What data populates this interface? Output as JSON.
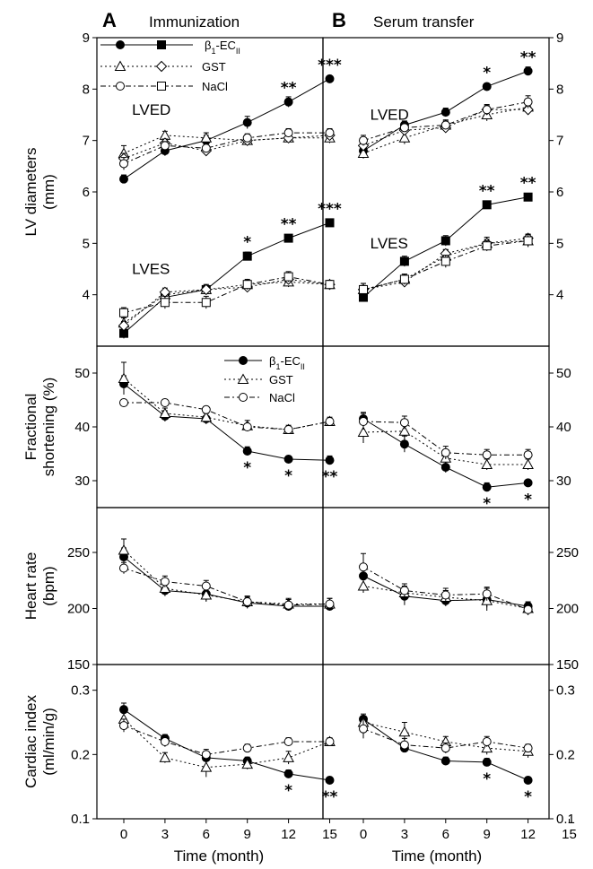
{
  "chart_data": [
    {
      "type": "line",
      "column": "A",
      "panel_letter": "A",
      "title": "Immunization",
      "ylabel_lines": [
        "LV diameters",
        "(mm)"
      ],
      "ylim": [
        3,
        9
      ],
      "yticks": [
        4,
        5,
        6,
        7,
        8,
        9
      ],
      "x": [
        0,
        3,
        6,
        9,
        12,
        15
      ],
      "legend": [
        {
          "label": "β1-ECII",
          "markers": [
            "filled-circle",
            "filled-square"
          ],
          "dash": "solid"
        },
        {
          "label": "GST",
          "markers": [
            "open-triangle",
            "open-diamond"
          ],
          "dash": "dotted"
        },
        {
          "label": "NaCl",
          "markers": [
            "open-circle",
            "open-square"
          ],
          "dash": "dashdot"
        }
      ],
      "annotations": [
        {
          "text": "LVED",
          "x": 0.6,
          "y": 7.5
        },
        {
          "text": "LVES",
          "x": 0.6,
          "y": 4.4
        }
      ],
      "series": [
        {
          "name": "LVED β1-ECII",
          "marker": "filled-circle",
          "dash": "solid",
          "values": [
            6.25,
            6.8,
            7.0,
            7.35,
            7.75,
            8.2
          ],
          "errors": [
            0.08,
            0.1,
            0.1,
            0.12,
            0.1,
            0.05
          ],
          "stars": [
            "",
            "",
            "",
            "",
            "**",
            "***"
          ]
        },
        {
          "name": "LVED GST",
          "marker": "open-triangle",
          "dash": "dotted",
          "values": [
            6.75,
            7.1,
            7.05,
            7.0,
            7.05,
            7.05
          ],
          "errors": [
            0.15,
            0.08,
            0.1,
            0.1,
            0.1,
            0.1
          ]
        },
        {
          "name": "LVED GST",
          "marker": "open-diamond",
          "dash": "dotted",
          "values": [
            6.65,
            6.95,
            6.8,
            7.0,
            7.05,
            7.1
          ],
          "errors": [
            0.1,
            0.08,
            0.08,
            0.08,
            0.08,
            0.08
          ]
        },
        {
          "name": "LVED NaCl",
          "marker": "open-circle",
          "dash": "dashdot",
          "values": [
            6.55,
            6.9,
            6.85,
            7.05,
            7.15,
            7.15
          ],
          "errors": [
            0.12,
            0.08,
            0.08,
            0.08,
            0.08,
            0.08
          ]
        },
        {
          "name": "LVES β1-ECII",
          "marker": "filled-square",
          "dash": "solid",
          "values": [
            3.25,
            3.95,
            4.1,
            4.75,
            5.1,
            5.4
          ],
          "errors": [
            0.1,
            0.08,
            0.1,
            0.08,
            0.06,
            0.05
          ],
          "stars": [
            "",
            "",
            "",
            "*",
            "**",
            "***"
          ]
        },
        {
          "name": "LVES GST",
          "marker": "open-triangle",
          "dash": "dotted",
          "values": [
            3.45,
            4.0,
            4.1,
            4.2,
            4.25,
            4.2
          ],
          "errors": [
            0.1,
            0.1,
            0.08,
            0.08,
            0.1,
            0.08
          ]
        },
        {
          "name": "LVES GST",
          "marker": "open-diamond",
          "dash": "dotted",
          "values": [
            3.4,
            4.05,
            4.1,
            4.15,
            4.3,
            4.2
          ],
          "errors": [
            0.08,
            0.08,
            0.08,
            0.08,
            0.08,
            0.08
          ]
        },
        {
          "name": "LVES NaCl",
          "marker": "open-square",
          "dash": "dashdot",
          "values": [
            3.65,
            3.85,
            3.85,
            4.2,
            4.35,
            4.2
          ],
          "errors": [
            0.1,
            0.12,
            0.12,
            0.1,
            0.1,
            0.08
          ]
        }
      ]
    },
    {
      "type": "line",
      "column": "B",
      "panel_letter": "B",
      "title": "Serum transfer",
      "ylim": [
        3,
        9
      ],
      "yticks": [
        4,
        5,
        6,
        7,
        8,
        9
      ],
      "x": [
        0,
        3,
        6,
        9,
        12
      ],
      "annotations": [
        {
          "text": "LVED",
          "x": 0.5,
          "y": 7.4
        },
        {
          "text": "LVES",
          "x": 0.5,
          "y": 4.9
        }
      ],
      "series": [
        {
          "name": "LVED β1-ECII",
          "marker": "filled-circle",
          "dash": "solid",
          "values": [
            6.8,
            7.3,
            7.55,
            8.05,
            8.35
          ],
          "errors": [
            0.08,
            0.08,
            0.08,
            0.06,
            0.08
          ],
          "stars": [
            "",
            "",
            "",
            "*",
            "**"
          ]
        },
        {
          "name": "LVED GST",
          "marker": "open-triangle",
          "dash": "dotted",
          "values": [
            6.75,
            7.05,
            7.3,
            7.5,
            7.65
          ],
          "errors": [
            0.1,
            0.12,
            0.1,
            0.12,
            0.15
          ]
        },
        {
          "name": "LVED GST",
          "marker": "open-diamond",
          "dash": "dotted",
          "values": [
            6.9,
            7.2,
            7.25,
            7.6,
            7.6
          ],
          "errors": [
            0.08,
            0.08,
            0.08,
            0.1,
            0.1
          ]
        },
        {
          "name": "LVED NaCl",
          "marker": "open-circle",
          "dash": "dashdot",
          "values": [
            7.0,
            7.25,
            7.3,
            7.6,
            7.75
          ],
          "errors": [
            0.1,
            0.08,
            0.08,
            0.08,
            0.12
          ]
        },
        {
          "name": "LVES β1-ECII",
          "marker": "filled-square",
          "dash": "solid",
          "values": [
            3.95,
            4.65,
            5.05,
            5.75,
            5.9
          ],
          "errors": [
            0.08,
            0.1,
            0.1,
            0.06,
            0.06
          ],
          "stars": [
            "",
            "",
            "",
            "**",
            "**"
          ]
        },
        {
          "name": "LVES GST",
          "marker": "open-triangle",
          "dash": "dotted",
          "values": [
            4.1,
            4.3,
            4.75,
            5.0,
            5.05
          ],
          "errors": [
            0.12,
            0.1,
            0.12,
            0.12,
            0.12
          ]
        },
        {
          "name": "LVES GST",
          "marker": "open-diamond",
          "dash": "dotted",
          "values": [
            4.1,
            4.25,
            4.8,
            5.0,
            5.1
          ],
          "errors": [
            0.08,
            0.08,
            0.08,
            0.08,
            0.08
          ]
        },
        {
          "name": "LVES NaCl",
          "marker": "open-square",
          "dash": "dashdot",
          "values": [
            4.1,
            4.3,
            4.65,
            4.95,
            5.05
          ],
          "errors": [
            0.12,
            0.1,
            0.12,
            0.1,
            0.12
          ]
        }
      ]
    },
    {
      "type": "line",
      "column": "A",
      "ylabel_lines": [
        "Fractional",
        "shortening (%)"
      ],
      "ylim": [
        25,
        55
      ],
      "yticks": [
        30,
        40,
        50
      ],
      "x": [
        0,
        3,
        6,
        9,
        12,
        15
      ],
      "legend": [
        {
          "label": "β1-ECII",
          "markers": [
            "filled-circle"
          ],
          "dash": "solid"
        },
        {
          "label": "GST",
          "markers": [
            "open-triangle"
          ],
          "dash": "dotted"
        },
        {
          "label": "NaCl",
          "markers": [
            "open-circle"
          ],
          "dash": "dashdot"
        }
      ],
      "series": [
        {
          "name": "β1-ECII",
          "marker": "filled-circle",
          "dash": "solid",
          "values": [
            48.0,
            42.0,
            41.5,
            35.5,
            34.0,
            33.8
          ],
          "errors": [
            1.5,
            1.0,
            1.0,
            0.8,
            0.6,
            0.8
          ],
          "stars": [
            "",
            "",
            "",
            "*",
            "*",
            "**"
          ]
        },
        {
          "name": "GST",
          "marker": "open-triangle",
          "dash": "dotted",
          "values": [
            49.0,
            42.5,
            41.8,
            40.2,
            39.5,
            41.0
          ],
          "errors": [
            3.0,
            1.0,
            1.0,
            1.0,
            0.8,
            0.8
          ]
        },
        {
          "name": "NaCl",
          "marker": "open-circle",
          "dash": "dashdot",
          "values": [
            44.5,
            44.5,
            43.2,
            40.0,
            39.5,
            41.0
          ],
          "errors": [
            0.6,
            0.6,
            0.6,
            0.6,
            0.6,
            0.6
          ]
        }
      ]
    },
    {
      "type": "line",
      "column": "B",
      "ylim": [
        25,
        55
      ],
      "yticks": [
        30,
        40,
        50
      ],
      "x": [
        0,
        3,
        6,
        9,
        12
      ],
      "series": [
        {
          "name": "β1-ECII",
          "marker": "filled-circle",
          "dash": "solid",
          "values": [
            41.5,
            36.8,
            32.5,
            28.8,
            29.6
          ],
          "errors": [
            1.2,
            1.5,
            1.0,
            0.8,
            0.5
          ],
          "stars": [
            "",
            "",
            "",
            "*",
            "*"
          ]
        },
        {
          "name": "GST",
          "marker": "open-triangle",
          "dash": "dotted",
          "values": [
            39.0,
            39.2,
            34.2,
            33.0,
            33.0
          ],
          "errors": [
            2.0,
            1.5,
            1.5,
            1.0,
            1.0
          ]
        },
        {
          "name": "NaCl",
          "marker": "open-circle",
          "dash": "dashdot",
          "values": [
            41.0,
            40.8,
            35.2,
            34.8,
            34.8
          ],
          "errors": [
            1.5,
            1.2,
            1.2,
            1.0,
            1.0
          ]
        }
      ]
    },
    {
      "type": "line",
      "column": "A",
      "ylabel_lines": [
        "Heart rate",
        "(bpm)"
      ],
      "ylim": [
        150,
        290
      ],
      "yticks": [
        150,
        200,
        250
      ],
      "x": [
        0,
        3,
        6,
        9,
        12,
        15
      ],
      "series": [
        {
          "name": "β1-ECII",
          "marker": "filled-circle",
          "dash": "solid",
          "values": [
            246,
            216,
            213,
            205,
            202,
            202
          ],
          "errors": [
            8,
            5,
            6,
            5,
            4,
            4
          ]
        },
        {
          "name": "GST",
          "marker": "open-triangle",
          "dash": "dotted",
          "values": [
            252,
            218,
            212,
            206,
            204,
            204
          ],
          "errors": [
            10,
            6,
            6,
            5,
            5,
            5
          ]
        },
        {
          "name": "NaCl",
          "marker": "open-circle",
          "dash": "dashdot",
          "values": [
            236,
            224,
            220,
            206,
            203,
            204
          ],
          "errors": [
            5,
            5,
            5,
            5,
            5,
            5
          ]
        }
      ]
    },
    {
      "type": "line",
      "column": "B",
      "ylim": [
        150,
        290
      ],
      "yticks": [
        150,
        200,
        250
      ],
      "x": [
        0,
        3,
        6,
        9,
        12
      ],
      "series": [
        {
          "name": "β1-ECII",
          "marker": "filled-circle",
          "dash": "solid",
          "values": [
            229,
            211,
            207,
            208,
            202
          ],
          "errors": [
            6,
            8,
            5,
            10,
            4
          ]
        },
        {
          "name": "GST",
          "marker": "open-triangle",
          "dash": "dotted",
          "values": [
            220,
            214,
            210,
            207,
            200
          ],
          "errors": [
            6,
            6,
            6,
            6,
            5
          ]
        },
        {
          "name": "NaCl",
          "marker": "open-circle",
          "dash": "dashdot",
          "values": [
            237,
            216,
            212,
            213,
            199
          ],
          "errors": [
            12,
            6,
            6,
            6,
            5
          ]
        }
      ]
    },
    {
      "type": "line",
      "column": "A",
      "ylabel_lines": [
        "Cardiac index",
        "(ml/min/g)"
      ],
      "ylim": [
        0.1,
        0.34
      ],
      "yticks": [
        0.1,
        0.2,
        0.3
      ],
      "xlabel": "Time (month)",
      "x": [
        0,
        3,
        6,
        9,
        12,
        15
      ],
      "xticks": [
        0,
        3,
        6,
        9,
        12,
        15
      ],
      "series": [
        {
          "name": "β1-ECII",
          "marker": "filled-circle",
          "dash": "solid",
          "values": [
            0.27,
            0.225,
            0.195,
            0.19,
            0.17,
            0.16
          ],
          "errors": [
            0.01,
            0.006,
            0.008,
            0.006,
            0.006,
            0.005
          ],
          "stars": [
            "",
            "",
            "",
            "",
            "*",
            "**"
          ]
        },
        {
          "name": "GST",
          "marker": "open-triangle",
          "dash": "dotted",
          "values": [
            0.255,
            0.195,
            0.18,
            0.185,
            0.195,
            0.22
          ],
          "errors": [
            0.01,
            0.008,
            0.015,
            0.008,
            0.01,
            0.005
          ]
        },
        {
          "name": "NaCl",
          "marker": "open-circle",
          "dash": "dashdot",
          "values": [
            0.245,
            0.22,
            0.2,
            0.21,
            0.22,
            0.22
          ],
          "errors": [
            0.01,
            0.008,
            0.008,
            0.006,
            0.006,
            0.006
          ]
        }
      ]
    },
    {
      "type": "line",
      "column": "B",
      "ylim": [
        0.1,
        0.34
      ],
      "yticks": [
        0.1,
        0.2,
        0.3
      ],
      "xlabel": "Time (month)",
      "x": [
        0,
        3,
        6,
        9,
        12
      ],
      "xticks": [
        0,
        3,
        6,
        9,
        12,
        15
      ],
      "series": [
        {
          "name": "β1-ECII",
          "marker": "filled-circle",
          "dash": "solid",
          "values": [
            0.255,
            0.21,
            0.19,
            0.188,
            0.16
          ],
          "errors": [
            0.008,
            0.006,
            0.006,
            0.006,
            0.005
          ],
          "stars": [
            "",
            "",
            "",
            "*",
            "*"
          ]
        },
        {
          "name": "GST",
          "marker": "open-triangle",
          "dash": "dotted",
          "values": [
            0.25,
            0.235,
            0.22,
            0.21,
            0.205
          ],
          "errors": [
            0.01,
            0.015,
            0.008,
            0.01,
            0.01
          ]
        },
        {
          "name": "NaCl",
          "marker": "open-circle",
          "dash": "dashdot",
          "values": [
            0.24,
            0.215,
            0.21,
            0.22,
            0.21
          ],
          "errors": [
            0.015,
            0.01,
            0.008,
            0.008,
            0.006
          ]
        }
      ]
    }
  ]
}
